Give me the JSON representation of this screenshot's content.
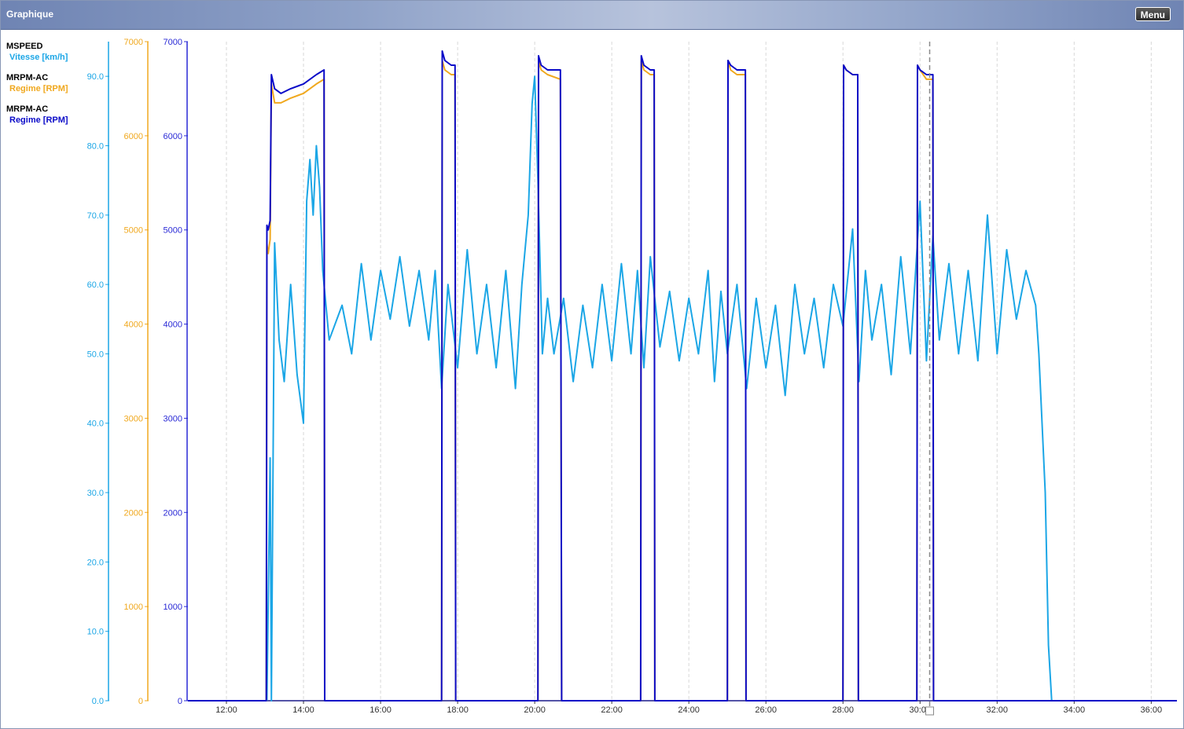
{
  "window": {
    "title": "Graphique",
    "menu_label": "Menu"
  },
  "legend": [
    {
      "channel": "MSPEED",
      "series": "Vitesse [km/h]",
      "color": "#1ba6e6"
    },
    {
      "channel": "MRPM-AC",
      "series": "Regime [RPM]",
      "color": "#f0a81e"
    },
    {
      "channel": "MRPM-AC",
      "series": "Regime [RPM]",
      "color": "#0a0ac8"
    }
  ],
  "chart_data": {
    "type": "line",
    "x_range": [
      "11:00",
      "36:40"
    ],
    "x_ticks": [
      "12:00",
      "14:00",
      "16:00",
      "18:00",
      "20:00",
      "22:00",
      "24:00",
      "26:00",
      "28:00",
      "30:00",
      "32:00",
      "34:00",
      "36:00"
    ],
    "grid": "vertical dashed",
    "cursor_time": "30:15",
    "axes": [
      {
        "id": "speed",
        "unit": "km/h",
        "color": "#1ba6e6",
        "ylim": [
          0,
          95
        ],
        "ticks": [
          "0.0",
          "10.0",
          "20.0",
          "30.0",
          "40.0",
          "50.0",
          "60.0",
          "70.0",
          "80.0",
          "90.0"
        ]
      },
      {
        "id": "rpm_orange",
        "unit": "RPM",
        "color": "#f0a81e",
        "ylim": [
          0,
          7000
        ],
        "ticks": [
          "0",
          "1000",
          "2000",
          "3000",
          "4000",
          "5000",
          "6000",
          "7000"
        ]
      },
      {
        "id": "rpm_blue",
        "unit": "RPM",
        "color": "#2a2ad6",
        "ylim": [
          0,
          7000
        ],
        "ticks": [
          "0",
          "1000",
          "2000",
          "3000",
          "4000",
          "5000",
          "6000",
          "7000"
        ]
      }
    ],
    "series": [
      {
        "name": "Vitesse [km/h]",
        "axis": "speed",
        "color": "#1ba6e6",
        "x": [
          "13:03",
          "13:08",
          "13:10",
          "13:15",
          "13:22",
          "13:30",
          "13:40",
          "13:50",
          "14:00",
          "14:05",
          "14:10",
          "14:15",
          "14:20",
          "14:25",
          "14:30",
          "14:40",
          "15:00",
          "15:15",
          "15:30",
          "15:45",
          "16:00",
          "16:15",
          "16:30",
          "16:45",
          "17:00",
          "17:15",
          "17:25",
          "17:35",
          "17:45",
          "18:00",
          "18:15",
          "18:30",
          "18:45",
          "19:00",
          "19:15",
          "19:30",
          "19:40",
          "19:50",
          "19:56",
          "20:00",
          "20:05",
          "20:12",
          "20:20",
          "20:30",
          "20:45",
          "21:00",
          "21:15",
          "21:30",
          "21:45",
          "22:00",
          "22:15",
          "22:30",
          "22:40",
          "22:50",
          "23:00",
          "23:15",
          "23:30",
          "23:45",
          "24:00",
          "24:15",
          "24:30",
          "24:40",
          "24:50",
          "25:00",
          "25:15",
          "25:30",
          "25:45",
          "26:00",
          "26:15",
          "26:30",
          "26:45",
          "27:00",
          "27:15",
          "27:30",
          "27:45",
          "28:00",
          "28:15",
          "28:25",
          "28:35",
          "28:45",
          "29:00",
          "29:15",
          "29:30",
          "29:45",
          "30:00",
          "30:10",
          "30:20",
          "30:30",
          "30:45",
          "31:00",
          "31:15",
          "31:30",
          "31:45",
          "32:00",
          "32:15",
          "32:30",
          "32:45",
          "33:00",
          "33:05",
          "33:15",
          "33:20",
          "33:25"
        ],
        "values": [
          0,
          35,
          0,
          66,
          52,
          46,
          60,
          47,
          40,
          72,
          78,
          70,
          80,
          74,
          62,
          52,
          57,
          50,
          63,
          52,
          62,
          55,
          64,
          54,
          62,
          52,
          62,
          45,
          60,
          48,
          65,
          50,
          60,
          48,
          62,
          45,
          60,
          70,
          86,
          90,
          75,
          50,
          58,
          50,
          58,
          46,
          57,
          48,
          60,
          49,
          63,
          50,
          62,
          48,
          64,
          51,
          59,
          49,
          58,
          50,
          62,
          46,
          59,
          50,
          60,
          45,
          58,
          48,
          57,
          44,
          60,
          50,
          58,
          48,
          60,
          54,
          68,
          46,
          62,
          52,
          60,
          47,
          64,
          50,
          72,
          49,
          67,
          52,
          63,
          50,
          62,
          49,
          70,
          50,
          65,
          55,
          62,
          57,
          50,
          30,
          8,
          0
        ]
      },
      {
        "name": "Regime [RPM]",
        "axis": "rpm_orange",
        "color": "#f0a81e",
        "x": [
          "11:00",
          "13:02",
          "13:03",
          "13:05",
          "13:08",
          "13:10",
          "13:15",
          "13:25",
          "13:40",
          "14:00",
          "14:20",
          "14:32",
          "14:33",
          "17:35",
          "17:36",
          "17:40",
          "17:50",
          "17:56",
          "17:57",
          "20:05",
          "20:06",
          "20:10",
          "20:20",
          "20:40",
          "20:42",
          "22:45",
          "22:46",
          "22:50",
          "23:00",
          "23:06",
          "23:07",
          "25:00",
          "25:01",
          "25:05",
          "25:15",
          "25:28",
          "25:29",
          "28:00",
          "28:01",
          "28:05",
          "28:15",
          "28:23",
          "28:24",
          "29:55",
          "29:56",
          "30:00",
          "30:10",
          "30:20",
          "30:21",
          "36:40"
        ],
        "values": [
          0,
          0,
          4850,
          4750,
          4900,
          6550,
          6350,
          6350,
          6400,
          6450,
          6550,
          6600,
          0,
          0,
          6800,
          6700,
          6650,
          6650,
          0,
          0,
          6800,
          6700,
          6650,
          6600,
          0,
          0,
          6800,
          6700,
          6650,
          6650,
          0,
          0,
          6800,
          6700,
          6650,
          6650,
          0,
          0,
          6750,
          6700,
          6650,
          6650,
          0,
          0,
          6750,
          6700,
          6600,
          6600,
          0,
          0
        ]
      },
      {
        "name": "Regime [RPM]",
        "axis": "rpm_blue",
        "color": "#0a0ac8",
        "x": [
          "11:00",
          "13:02",
          "13:03",
          "13:05",
          "13:08",
          "13:10",
          "13:15",
          "13:25",
          "13:40",
          "14:00",
          "14:20",
          "14:32",
          "14:33",
          "17:35",
          "17:36",
          "17:40",
          "17:50",
          "17:56",
          "17:57",
          "20:05",
          "20:06",
          "20:10",
          "20:20",
          "20:40",
          "20:42",
          "22:45",
          "22:46",
          "22:50",
          "23:00",
          "23:06",
          "23:07",
          "25:00",
          "25:01",
          "25:05",
          "25:15",
          "25:28",
          "25:29",
          "28:00",
          "28:01",
          "28:05",
          "28:15",
          "28:23",
          "28:24",
          "29:55",
          "29:56",
          "30:00",
          "30:10",
          "30:20",
          "30:21",
          "36:40"
        ],
        "values": [
          0,
          0,
          5050,
          5000,
          5100,
          6650,
          6500,
          6450,
          6500,
          6550,
          6650,
          6700,
          0,
          0,
          6900,
          6800,
          6750,
          6750,
          0,
          0,
          6850,
          6750,
          6700,
          6700,
          0,
          0,
          6850,
          6750,
          6700,
          6700,
          0,
          0,
          6800,
          6750,
          6700,
          6700,
          0,
          0,
          6750,
          6700,
          6650,
          6650,
          0,
          0,
          6750,
          6700,
          6650,
          6650,
          0,
          0
        ]
      }
    ]
  }
}
